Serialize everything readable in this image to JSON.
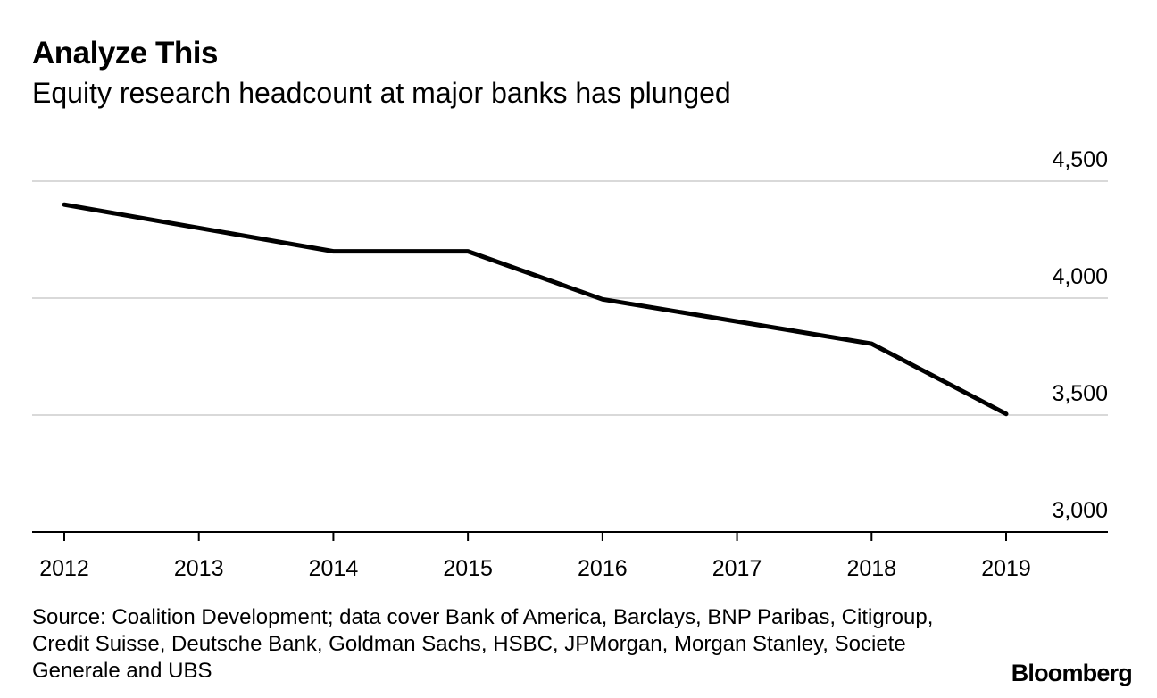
{
  "chart_data": {
    "type": "line",
    "title": "Analyze This",
    "subtitle": "Equity research headcount at major banks has plunged",
    "x": [
      2012,
      2013,
      2014,
      2015,
      2016,
      2017,
      2018,
      2019
    ],
    "x_tick_labels": [
      "2012",
      "2013",
      "2014",
      "2015",
      "2016",
      "2017",
      "2018",
      "2019"
    ],
    "series": [
      {
        "name": "Equity research headcount",
        "color": "#000000",
        "points": [
          {
            "x": 2012,
            "y": 4400
          },
          {
            "x": 2014,
            "y": 4200
          },
          {
            "x": 2015,
            "y": 4200
          },
          {
            "x": 2016,
            "y": 3995
          },
          {
            "x": 2018,
            "y": 3805
          },
          {
            "x": 2019,
            "y": 3505
          }
        ]
      }
    ],
    "y_ticks": [
      3000,
      3500,
      4000,
      4500
    ],
    "y_tick_labels": [
      "3,000",
      "3,500",
      "4,000",
      "4,500"
    ],
    "ylim": [
      3000,
      4500
    ],
    "xlim": [
      2011.8,
      2019.7
    ],
    "y_axis_side": "right",
    "grid": true,
    "xlabel": "",
    "ylabel": "",
    "source": "Source: Coalition Development; data cover Bank of America, Barclays, BNP Paribas, Citigroup, Credit Suisse, Deutsche Bank, Goldman Sachs, HSBC, JPMorgan, Morgan Stanley, Societe Generale and UBS",
    "brand": "Bloomberg"
  },
  "colors": {
    "line": "#000000",
    "grid": "#d9d9d9",
    "axis": "#000000"
  }
}
